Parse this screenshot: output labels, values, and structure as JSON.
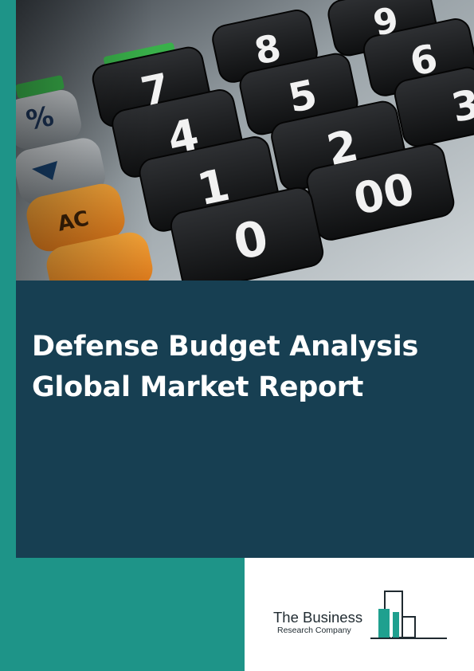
{
  "cover": {
    "title_line1": "Defense Budget Analysis",
    "title_line2": "Global Market Report"
  },
  "publisher": {
    "name": "The Business",
    "sub": "Research Company"
  },
  "photo": {
    "keys": [
      "9",
      "8",
      "6",
      "7",
      "5",
      "3",
      "%",
      "4",
      "2",
      "1",
      "00",
      "AC",
      "0"
    ]
  },
  "colors": {
    "teal": "#1e9488",
    "navy": "#173f52",
    "logo_teal": "#1fa08f",
    "logo_dark": "#1f2a30"
  }
}
